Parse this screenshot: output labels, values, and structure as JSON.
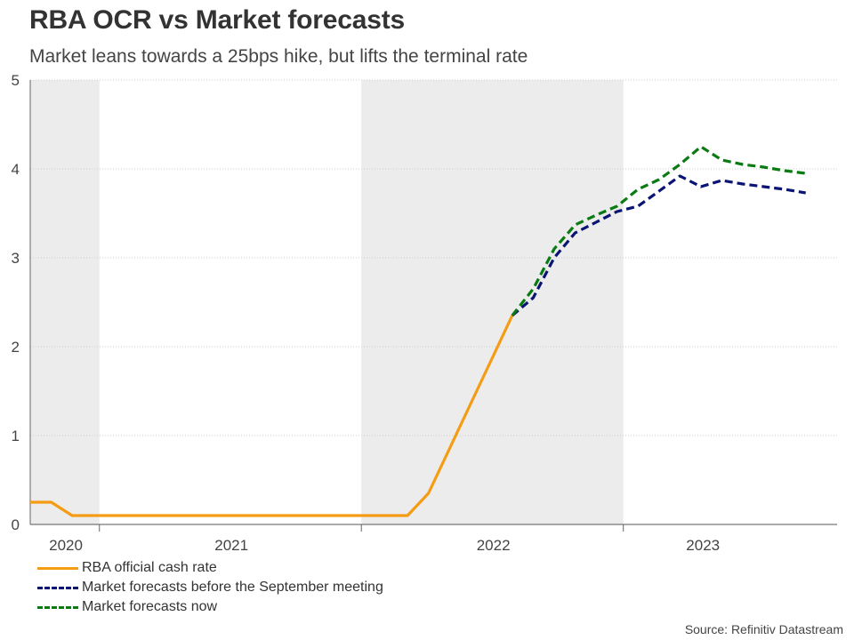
{
  "title": "RBA OCR vs Market forecasts",
  "subtitle": "Market leans towards a 25bps hike, but lifts the terminal rate",
  "source": "Source: Refinitiv Datastream",
  "colors": {
    "ocr": "#f59c15",
    "before": "#0a1473",
    "now": "#0a7a12",
    "shade": "#ececec",
    "grid": "#cccccc"
  },
  "chart_data": {
    "type": "line",
    "title": "RBA OCR vs Market forecasts",
    "xlabel": "",
    "ylabel": "",
    "ylim": [
      0,
      5
    ],
    "xlim": [
      2020.0,
      2023.85
    ],
    "yticks": [
      0,
      1,
      2,
      3,
      4,
      5
    ],
    "grid": true,
    "x_tick_labels": [
      {
        "label": "2020",
        "x": 2020.17
      },
      {
        "label": "2021",
        "x": 2020.96
      },
      {
        "label": "2022",
        "x": 2022.21
      },
      {
        "label": "2023",
        "x": 2023.21
      }
    ],
    "x_dividers": [
      2020.33,
      2021.58,
      2022.83
    ],
    "shaded_years": [
      {
        "label": "2020",
        "from": 2020.0,
        "to": 2020.33
      },
      {
        "label": "2022",
        "from": 2021.58,
        "to": 2022.83
      }
    ],
    "legend_position": "bottom-left",
    "series": [
      {
        "name": "RBA official cash rate",
        "style": "solid",
        "color_key": "ocr",
        "points": [
          [
            2020.0,
            0.25
          ],
          [
            2020.1,
            0.25
          ],
          [
            2020.2,
            0.1
          ],
          [
            2021.8,
            0.1
          ],
          [
            2021.9,
            0.35
          ],
          [
            2022.0,
            0.85
          ],
          [
            2022.1,
            1.35
          ],
          [
            2022.2,
            1.85
          ],
          [
            2022.3,
            2.35
          ]
        ]
      },
      {
        "name": "Market forecasts before the September meeting",
        "style": "dashed",
        "color_key": "before",
        "points": [
          [
            2022.3,
            2.35
          ],
          [
            2022.4,
            2.55
          ],
          [
            2022.5,
            3.0
          ],
          [
            2022.6,
            3.28
          ],
          [
            2022.7,
            3.4
          ],
          [
            2022.8,
            3.52
          ],
          [
            2022.9,
            3.58
          ],
          [
            2023.0,
            3.75
          ],
          [
            2023.1,
            3.92
          ],
          [
            2023.2,
            3.8
          ],
          [
            2023.3,
            3.87
          ],
          [
            2023.4,
            3.83
          ],
          [
            2023.5,
            3.8
          ],
          [
            2023.6,
            3.77
          ],
          [
            2023.7,
            3.73
          ]
        ]
      },
      {
        "name": "Market forecasts now",
        "style": "dashed",
        "color_key": "now",
        "points": [
          [
            2022.3,
            2.35
          ],
          [
            2022.4,
            2.65
          ],
          [
            2022.5,
            3.1
          ],
          [
            2022.6,
            3.37
          ],
          [
            2022.7,
            3.48
          ],
          [
            2022.8,
            3.58
          ],
          [
            2022.9,
            3.77
          ],
          [
            2023.0,
            3.88
          ],
          [
            2023.1,
            4.05
          ],
          [
            2023.2,
            4.25
          ],
          [
            2023.3,
            4.1
          ],
          [
            2023.4,
            4.05
          ],
          [
            2023.5,
            4.02
          ],
          [
            2023.6,
            3.98
          ],
          [
            2023.7,
            3.95
          ]
        ]
      }
    ]
  }
}
